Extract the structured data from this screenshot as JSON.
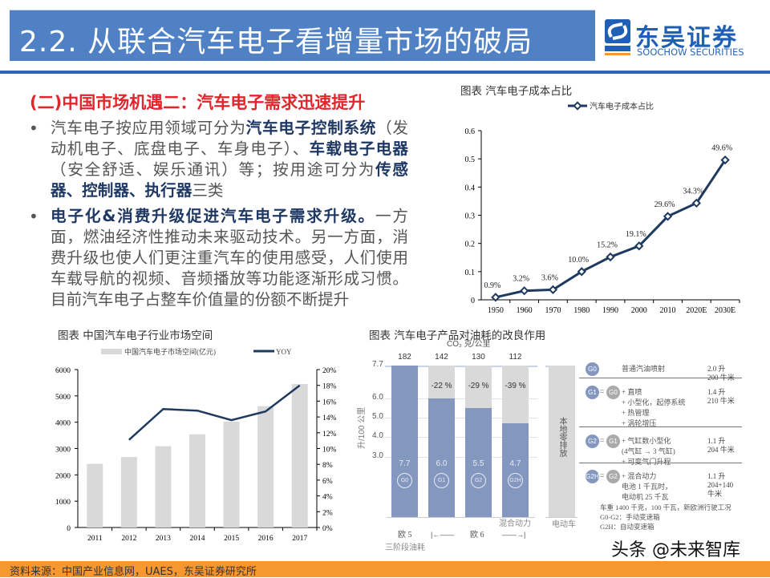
{
  "header": {
    "title": "2.2. 从联合汽车电子看增量市场的破局",
    "logo": {
      "cn": "东吴证券",
      "en": "SOOCHOW SECURITIES",
      "mark": "SCS"
    },
    "colors": {
      "bar": "#4f81c4",
      "accent_line": "#2f66b3"
    }
  },
  "subtitle": "(二)中国市场机遇二：汽车电子需求迅速提升",
  "bullets": [
    {
      "parts": [
        {
          "t": "汽车电子按应用领域可分为"
        },
        {
          "t": "汽车电子控制系统",
          "b": true
        },
        {
          "t": "（发动机电子、底盘电子、车身电子）、"
        },
        {
          "t": "车载电子电器",
          "b": true
        },
        {
          "t": "（安全舒适、娱乐通讯）等；按用途可分为"
        },
        {
          "t": "传感器、控制器、执行器",
          "b": true
        },
        {
          "t": "三类"
        }
      ]
    },
    {
      "parts": [
        {
          "t": "电子化&消费升级促进汽车电子需求升级。",
          "b": true
        },
        {
          "t": "一方面，燃油经济性推动未来驱动技术。另一方面，消费升级也使人们更注重汽车的使用感受，人们使用车载导航的视频、音频播放等功能逐渐形成习惯。目前汽车电子占整车价值量的份额不断提升"
        }
      ]
    }
  ],
  "chart_data": [
    {
      "type": "line",
      "title": "图表  汽车电子成本占比",
      "legend": "汽车电子成本占比",
      "legend_position": "top",
      "categories": [
        "1950",
        "1960",
        "1970",
        "1980",
        "1990",
        "2000",
        "2010",
        "2020E",
        "2030E"
      ],
      "values": [
        0.009,
        0.032,
        0.036,
        0.1,
        0.152,
        0.191,
        0.296,
        0.343,
        0.496
      ],
      "data_labels": [
        "0.9%",
        "3.2%",
        "3.6%",
        "10.0%",
        "15.2%",
        "19.1%",
        "29.6%",
        "34.3%",
        "49.6%"
      ],
      "ylim": [
        0,
        0.6
      ],
      "yticks": [
        "0",
        "0.1",
        "0.2",
        "0.3",
        "0.4",
        "0.5",
        "0.6"
      ],
      "color": "#1f3a5f",
      "grid": false
    },
    {
      "type": "bar+line",
      "title": "图表  中国汽车电子行业市场空间",
      "legend_position": "top",
      "categories": [
        "2011",
        "2012",
        "2013",
        "2014",
        "2015",
        "2016",
        "2017"
      ],
      "series": [
        {
          "name": "中国汽车电子市场空间(亿元)",
          "type": "bar",
          "axis": "left",
          "values": [
            2420,
            2680,
            3090,
            3540,
            4020,
            4610,
            5450
          ],
          "color": "#d9d9d9"
        },
        {
          "name": "YOY",
          "type": "line",
          "axis": "right",
          "values": [
            null,
            11.1,
            15.0,
            14.8,
            13.6,
            14.7,
            18.0
          ],
          "color": "#1f3a5f"
        }
      ],
      "ylim_left": [
        0,
        6000
      ],
      "yticks_left": [
        "0",
        "1000",
        "2000",
        "3000",
        "4000",
        "5000",
        "6000"
      ],
      "ylim_right": [
        0,
        20
      ],
      "yticks_right": [
        "0%",
        "2%",
        "4%",
        "6%",
        "8%",
        "10%",
        "12%",
        "14%",
        "16%",
        "18%",
        "20%"
      ],
      "grid": false
    },
    {
      "type": "bar",
      "title": "图表  汽车电子产品对油耗的改良作用",
      "co2_label": "CO₂ 克/公里",
      "ylabel": "升/100 公里",
      "yticks": [
        "3.0",
        "4.0",
        "5.0",
        "6.0",
        "7.7"
      ],
      "bars": [
        {
          "id": "G0",
          "co2": "182",
          "value": 7.7,
          "label": "7.7",
          "reduction": ""
        },
        {
          "id": "G1",
          "co2": "142",
          "value": 6.0,
          "label": "6.0",
          "reduction": "-22 %"
        },
        {
          "id": "G2",
          "co2": "130",
          "value": 5.5,
          "label": "5.5",
          "reduction": "-29 %"
        },
        {
          "id": "G2H",
          "co2": "112",
          "value": 4.7,
          "label": "4.7",
          "reduction": "-39 %"
        }
      ],
      "ev_bar": {
        "label": "本地零排放",
        "category": "电动车"
      },
      "x_groups": {
        "eu5": "欧 5",
        "eu6": "欧 6",
        "hybrid": "混合动力",
        "stage": "三阶段油耗"
      },
      "colors": {
        "blue": "#8497bf",
        "gray": "#d9d9d9"
      },
      "descriptions": [
        {
          "id": "G0",
          "formula": "",
          "items": [
            "普通汽油喷射"
          ],
          "spec": [
            "2.0 升",
            "200 牛米"
          ]
        },
        {
          "id": "G1",
          "base": "G0",
          "items": [
            "+ 直喷",
            "+ 小型化，起停系统",
            "+ 热管理",
            "+ 涡轮增压"
          ],
          "spec": [
            "1.4 升",
            "210 牛米"
          ]
        },
        {
          "id": "G2",
          "base": "G1",
          "items": [
            "+ 气缸数小型化",
            "(4气缸 → 3 气缸)",
            "+ 可变气门升程"
          ],
          "spec": [
            "1.1 升",
            "204 牛米"
          ]
        },
        {
          "id": "G2H",
          "base": "G2",
          "items": [
            "+ 混合动力",
            "电池 1 千瓦时，",
            "电动机 25 千瓦"
          ],
          "spec": [
            "1.1 升",
            "204+140",
            "牛米"
          ]
        }
      ],
      "notes": [
        "车重 1400 千克，100 千瓦，新欧洲行驶工况",
        "G0-G2：手动变速箱",
        "G2H：自动变速箱"
      ]
    }
  ],
  "footer": {
    "source": "资料来源：中国产业信息网，UAES，东吴证券研究所",
    "color": "#f7972f"
  },
  "watermark": "头条 @未来智库"
}
